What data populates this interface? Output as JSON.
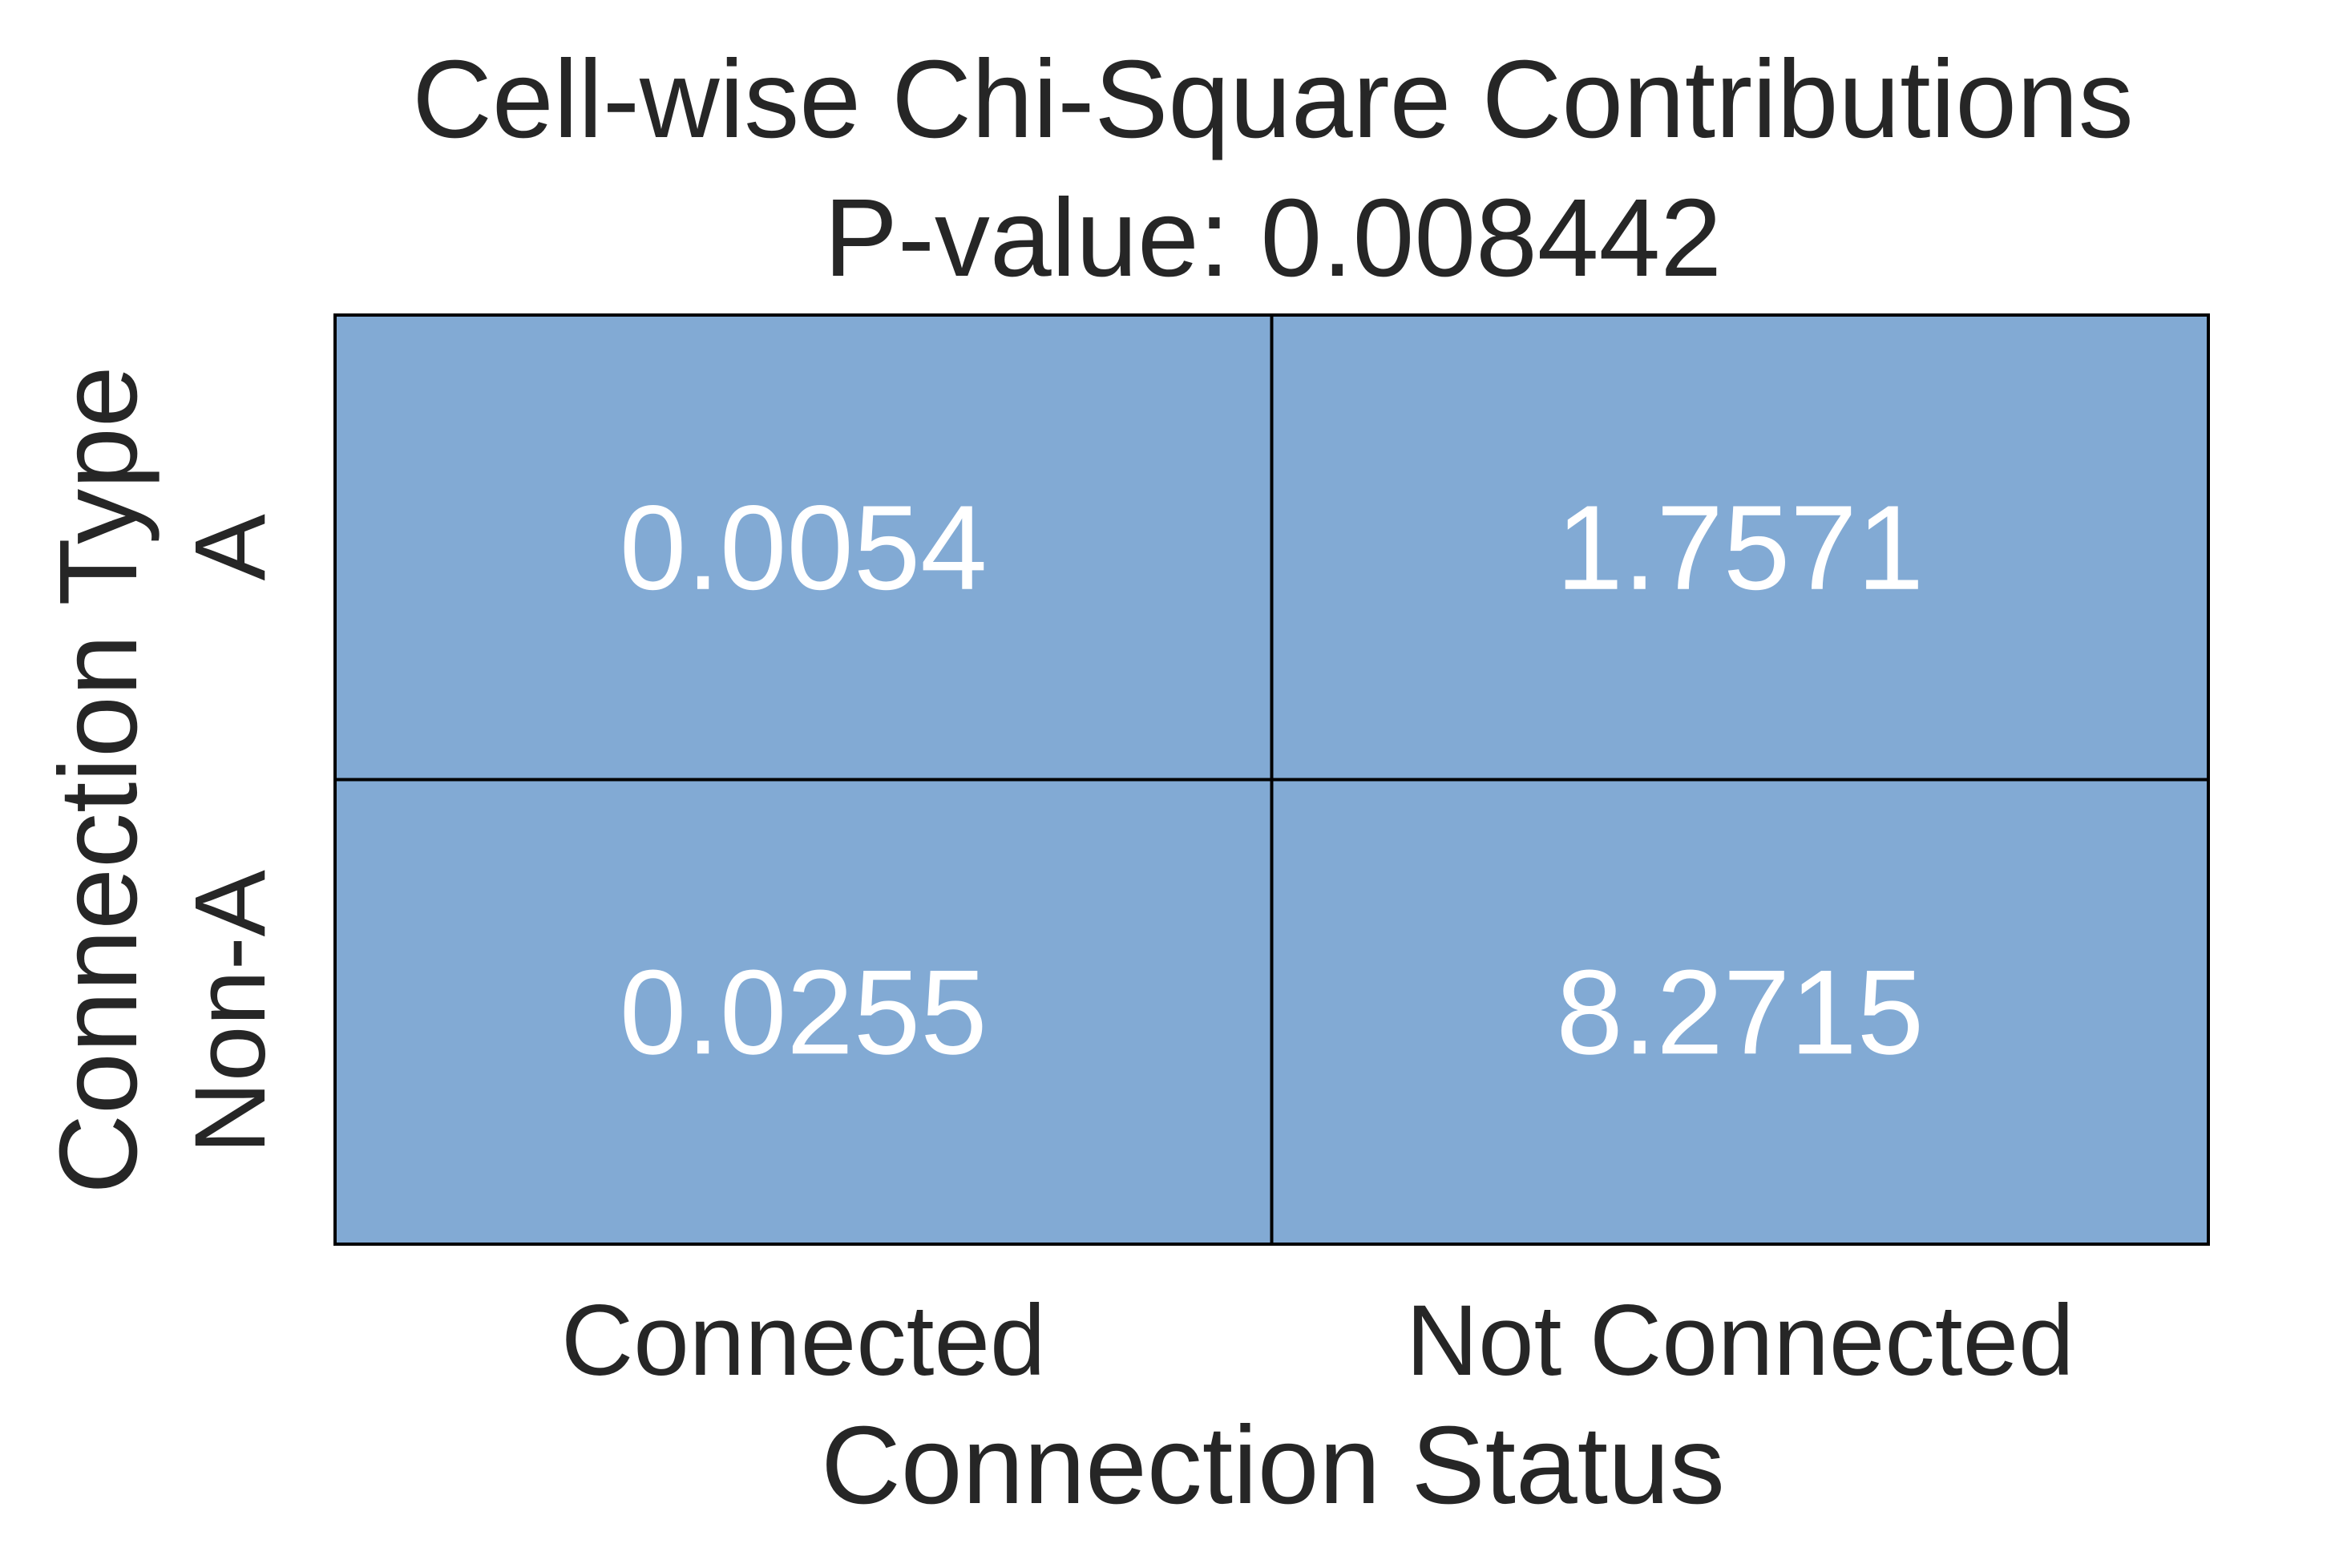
{
  "chart_data": {
    "type": "heatmap",
    "title": "Cell-wise Chi-Square Contributions",
    "subtitle": "P-value: 0.008442",
    "xlabel": "Connection Status",
    "ylabel": "Connection Type",
    "x_categories": [
      "Connected",
      "Not Connected"
    ],
    "y_categories": [
      "A",
      "Non-A"
    ],
    "values": [
      [
        0.0054,
        1.7571
      ],
      [
        0.0255,
        8.2715
      ]
    ],
    "cell_labels": [
      [
        "0.0054",
        "1.7571"
      ],
      [
        "0.0255",
        "8.2715"
      ]
    ],
    "cell_color": "#82aad4",
    "annotation_color": "#ffffff",
    "grid_line_color": "#000000",
    "colorbar": false
  }
}
